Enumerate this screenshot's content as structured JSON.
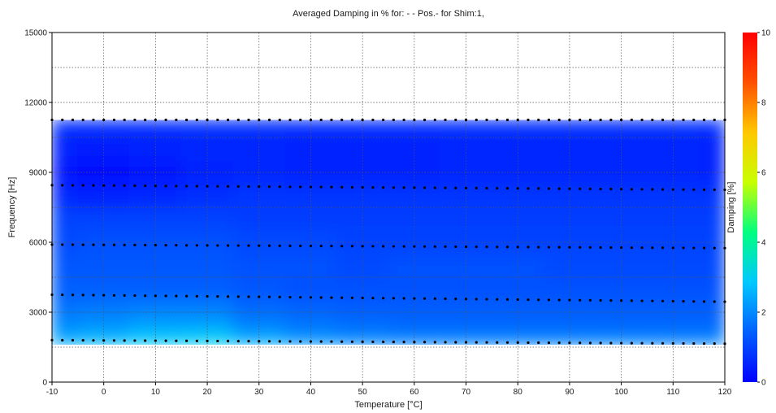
{
  "chart_data": {
    "type": "heatmap",
    "title": "Averaged Damping in % for:  - - Pos.-  for Shim:1,",
    "xlabel": "Temperature [°C]",
    "ylabel": "Frequency [Hz]",
    "xlim": [
      -10,
      120
    ],
    "ylim": [
      0,
      15000
    ],
    "x_ticks": [
      "-10",
      "0",
      "10",
      "20",
      "30",
      "40",
      "50",
      "60",
      "70",
      "80",
      "90",
      "100",
      "110",
      "120"
    ],
    "y_ticks": [
      "0",
      "3000",
      "6000",
      "9000",
      "12000",
      "15000"
    ],
    "grid": true,
    "data_extent_frequency": [
      1600,
      11250
    ],
    "colorbar": {
      "label": "Damping [%]",
      "range": [
        0,
        10
      ],
      "ticks": [
        "0",
        "2",
        "4",
        "6",
        "8",
        "10"
      ],
      "colors": [
        "#0000ff",
        "#0060ff",
        "#00c8ff",
        "#00ff80",
        "#c8ff00",
        "#ffc800",
        "#ff5000",
        "#ff0000"
      ]
    },
    "damping_field": {
      "temperatures": [
        -10,
        0,
        10,
        20,
        30,
        40,
        50,
        60,
        70,
        80,
        90,
        100,
        110,
        120
      ],
      "frequencies": [
        1600,
        2000,
        2500,
        3000,
        4000,
        5000,
        6000,
        7000,
        8000,
        9000,
        10000,
        11250
      ],
      "values": [
        [
          2.6,
          2.8,
          3.0,
          3.1,
          2.7,
          2.3,
          2.1,
          2.0,
          2.0,
          2.0,
          2.0,
          2.1,
          2.0,
          2.0
        ],
        [
          2.3,
          2.5,
          2.8,
          2.9,
          2.3,
          2.0,
          1.9,
          1.8,
          1.8,
          1.8,
          1.8,
          1.8,
          1.8,
          1.8
        ],
        [
          2.0,
          2.1,
          2.3,
          2.3,
          1.9,
          1.7,
          1.6,
          1.5,
          1.5,
          1.5,
          1.5,
          1.5,
          1.5,
          1.5
        ],
        [
          1.7,
          1.8,
          1.9,
          1.9,
          1.6,
          1.5,
          1.4,
          1.4,
          1.4,
          1.4,
          1.4,
          1.4,
          1.4,
          1.4
        ],
        [
          1.4,
          1.4,
          1.4,
          1.4,
          1.3,
          1.2,
          1.2,
          1.2,
          1.2,
          1.2,
          1.2,
          1.2,
          1.2,
          1.2
        ],
        [
          1.3,
          1.3,
          1.3,
          1.3,
          1.2,
          1.2,
          1.1,
          1.2,
          1.2,
          1.2,
          1.1,
          1.1,
          1.1,
          1.1
        ],
        [
          1.1,
          1.2,
          1.2,
          1.2,
          1.1,
          1.1,
          1.0,
          1.0,
          1.0,
          1.0,
          1.0,
          1.0,
          1.0,
          1.0
        ],
        [
          1.0,
          1.0,
          1.0,
          1.0,
          0.9,
          0.9,
          0.9,
          0.9,
          0.9,
          0.9,
          0.9,
          0.9,
          0.9,
          0.9
        ],
        [
          0.6,
          0.5,
          0.6,
          0.7,
          0.8,
          0.8,
          0.8,
          0.8,
          0.8,
          0.8,
          0.8,
          0.8,
          0.8,
          0.8
        ],
        [
          0.3,
          0.2,
          0.3,
          0.5,
          0.6,
          0.5,
          0.5,
          0.5,
          0.6,
          0.6,
          0.6,
          0.6,
          0.6,
          0.5
        ],
        [
          0.5,
          0.4,
          0.5,
          0.6,
          0.6,
          0.5,
          0.5,
          0.5,
          0.6,
          0.6,
          0.6,
          0.6,
          0.6,
          0.5
        ],
        [
          0.7,
          0.7,
          0.7,
          0.7,
          0.7,
          0.7,
          0.7,
          0.7,
          0.7,
          0.7,
          0.7,
          0.7,
          0.7,
          0.7
        ]
      ]
    },
    "measured_point_rows": [
      {
        "f_start": 1800,
        "f_end": 1650
      },
      {
        "f_start": 3750,
        "f_end": 3450
      },
      {
        "f_start": 5900,
        "f_end": 5750
      },
      {
        "f_start": 8450,
        "f_end": 8250
      },
      {
        "f_start": 11250,
        "f_end": 11250
      }
    ],
    "measured_point_temperatures_step": 2
  }
}
